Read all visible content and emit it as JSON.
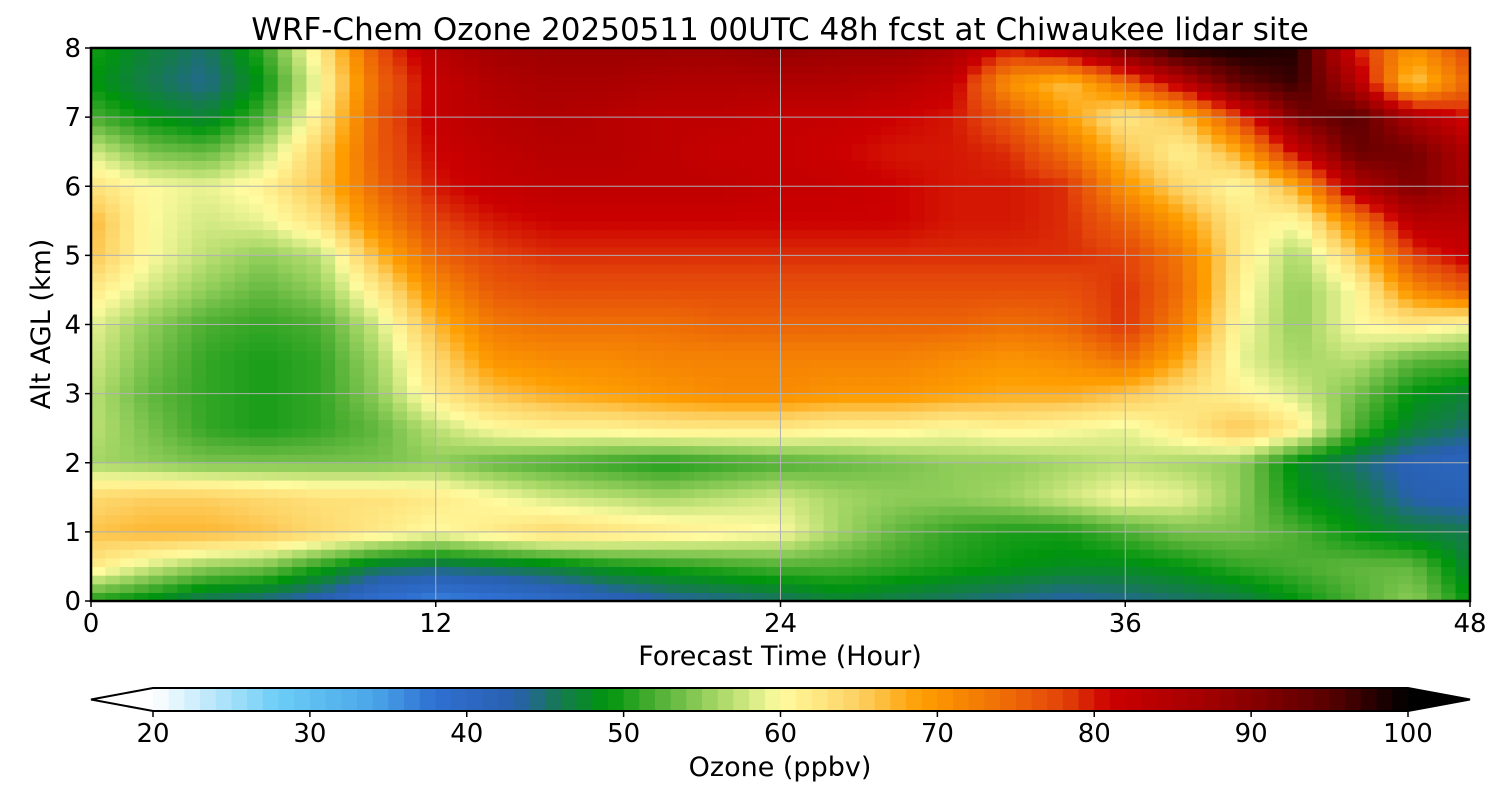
{
  "chart_data": {
    "type": "heatmap",
    "title": "WRF-Chem Ozone  20250511 00UTC 48h fcst at Chiwaukee lidar site",
    "xlabel": "Forecast Time (Hour)",
    "ylabel": "Alt AGL (km)",
    "xlim": [
      0,
      48
    ],
    "ylim": [
      0,
      8
    ],
    "x_ticks": [
      0,
      12,
      24,
      36,
      48
    ],
    "x_tick_labels": [
      "0",
      "12",
      "24",
      "36",
      "48"
    ],
    "y_ticks": [
      0,
      1,
      2,
      3,
      4,
      5,
      6,
      7,
      8
    ],
    "y_tick_labels": [
      "0",
      "1",
      "2",
      "3",
      "4",
      "5",
      "6",
      "7",
      "8"
    ],
    "grid": true,
    "x": [
      0,
      2,
      4,
      6,
      8,
      10,
      12,
      14,
      16,
      18,
      20,
      22,
      24,
      26,
      28,
      30,
      32,
      34,
      36,
      38,
      40,
      42,
      44,
      46,
      48
    ],
    "y": [
      0,
      0.5,
      1,
      1.5,
      2,
      2.5,
      3,
      3.5,
      4,
      4.5,
      5,
      5.5,
      6,
      6.5,
      7,
      7.5,
      8
    ],
    "z": [
      [
        50,
        48,
        45,
        44,
        42,
        38,
        36,
        37,
        39,
        41,
        43,
        44,
        45,
        47,
        46,
        45,
        44,
        43,
        44,
        45,
        46,
        49,
        52,
        55,
        49
      ],
      [
        62,
        58,
        55,
        54,
        50,
        46,
        45,
        46,
        47,
        49,
        50,
        51,
        52,
        52,
        51,
        50,
        49,
        48,
        48,
        49,
        51,
        52,
        53,
        53,
        47
      ],
      [
        66,
        67,
        67,
        66,
        64,
        62,
        60,
        62,
        64,
        63,
        62,
        61,
        60,
        56,
        53,
        51,
        50,
        50,
        52,
        54,
        54,
        52,
        49,
        47,
        46
      ],
      [
        64,
        65,
        65,
        64,
        63,
        63,
        62,
        60,
        58,
        57,
        56,
        57,
        58,
        56,
        55,
        55,
        56,
        58,
        60,
        59,
        55,
        49,
        47,
        43,
        42
      ],
      [
        56,
        55,
        54,
        54,
        54,
        54,
        55,
        53,
        52,
        51,
        50,
        51,
        52,
        53,
        54,
        55,
        55,
        56,
        57,
        56,
        55,
        48,
        45,
        42,
        41
      ],
      [
        57,
        54,
        51,
        50,
        51,
        53,
        57,
        60,
        61,
        61,
        62,
        62,
        62,
        61,
        61,
        60,
        61,
        60,
        59,
        62,
        66,
        62,
        52,
        47,
        45
      ],
      [
        57,
        53,
        51,
        50,
        51,
        55,
        62,
        66,
        68,
        69,
        70,
        71,
        71,
        70,
        70,
        69,
        68,
        68,
        66,
        63,
        61,
        58,
        54,
        49,
        47
      ],
      [
        58,
        54,
        51,
        50,
        51,
        56,
        64,
        70,
        71,
        71,
        72,
        72,
        72,
        72,
        72,
        71,
        70,
        71,
        74,
        68,
        59,
        56,
        57,
        53,
        52
      ],
      [
        59,
        55,
        52,
        51,
        52,
        58,
        67,
        73,
        74,
        74,
        74,
        75,
        75,
        75,
        75,
        75,
        74,
        75,
        79,
        72,
        60,
        55,
        60,
        62,
        60
      ],
      [
        62,
        58,
        55,
        53,
        55,
        62,
        71,
        76,
        77,
        77,
        77,
        77,
        77,
        77,
        77,
        77,
        77,
        77,
        79,
        74,
        61,
        55,
        60,
        71,
        76
      ],
      [
        66,
        60,
        57,
        55,
        57,
        67,
        75,
        78,
        79,
        79,
        79,
        79,
        79,
        79,
        79,
        79,
        79,
        79,
        78,
        73,
        62,
        56,
        65,
        78,
        82
      ],
      [
        67,
        60,
        58,
        59,
        63,
        72,
        78,
        80,
        81,
        81,
        81,
        81,
        81,
        81,
        81,
        80,
        80,
        79,
        75,
        69,
        62,
        60,
        72,
        84,
        84
      ],
      [
        63,
        60,
        59,
        61,
        66,
        75,
        80,
        82,
        83,
        83,
        83,
        83,
        82,
        82,
        81,
        80,
        80,
        79,
        70,
        64,
        60,
        68,
        85,
        91,
        86
      ],
      [
        58,
        54,
        53,
        57,
        65,
        76,
        81,
        83,
        84,
        84,
        83,
        82,
        82,
        81,
        80,
        80,
        79,
        74,
        66,
        61,
        68,
        82,
        93,
        92,
        85
      ],
      [
        52,
        49,
        47,
        52,
        62,
        76,
        82,
        84,
        85,
        84,
        83,
        83,
        82,
        82,
        81,
        80,
        76,
        69,
        62,
        66,
        78,
        91,
        95,
        86,
        80
      ],
      [
        49,
        46,
        44,
        49,
        60,
        75,
        82,
        85,
        86,
        86,
        85,
        85,
        85,
        85,
        84,
        82,
        70,
        66,
        74,
        84,
        94,
        97,
        85,
        65,
        75
      ],
      [
        50,
        47,
        45,
        51,
        62,
        77,
        84,
        87,
        88,
        88,
        88,
        88,
        89,
        88,
        88,
        86,
        80,
        85,
        93,
        99,
        99,
        98,
        80,
        70,
        78
      ]
    ],
    "colorbar": {
      "label": "Ozone  (ppbv)",
      "min": 20,
      "max": 100,
      "ticks": [
        20,
        30,
        40,
        50,
        60,
        70,
        80,
        90,
        100
      ],
      "tick_labels": [
        "20",
        "30",
        "40",
        "50",
        "60",
        "70",
        "80",
        "90",
        "100"
      ],
      "extend": "both",
      "under_color": "#ffffff",
      "over_color": "#000000",
      "color_stops": [
        [
          20,
          "#ffffff"
        ],
        [
          28,
          "#6ccdf6"
        ],
        [
          34,
          "#4aa6e8"
        ],
        [
          38,
          "#2f6fd1"
        ],
        [
          43,
          "#2860b0"
        ],
        [
          46,
          "#157a4e"
        ],
        [
          49,
          "#00950d"
        ],
        [
          52,
          "#4cae32"
        ],
        [
          56,
          "#a6d766"
        ],
        [
          60,
          "#fffb9f"
        ],
        [
          65,
          "#fdd061"
        ],
        [
          69,
          "#fe9d00"
        ],
        [
          73,
          "#f27a05"
        ],
        [
          78,
          "#e3440a"
        ],
        [
          81,
          "#cc0000"
        ],
        [
          88,
          "#9c0000"
        ],
        [
          95,
          "#580000"
        ],
        [
          100,
          "#000000"
        ]
      ]
    }
  }
}
